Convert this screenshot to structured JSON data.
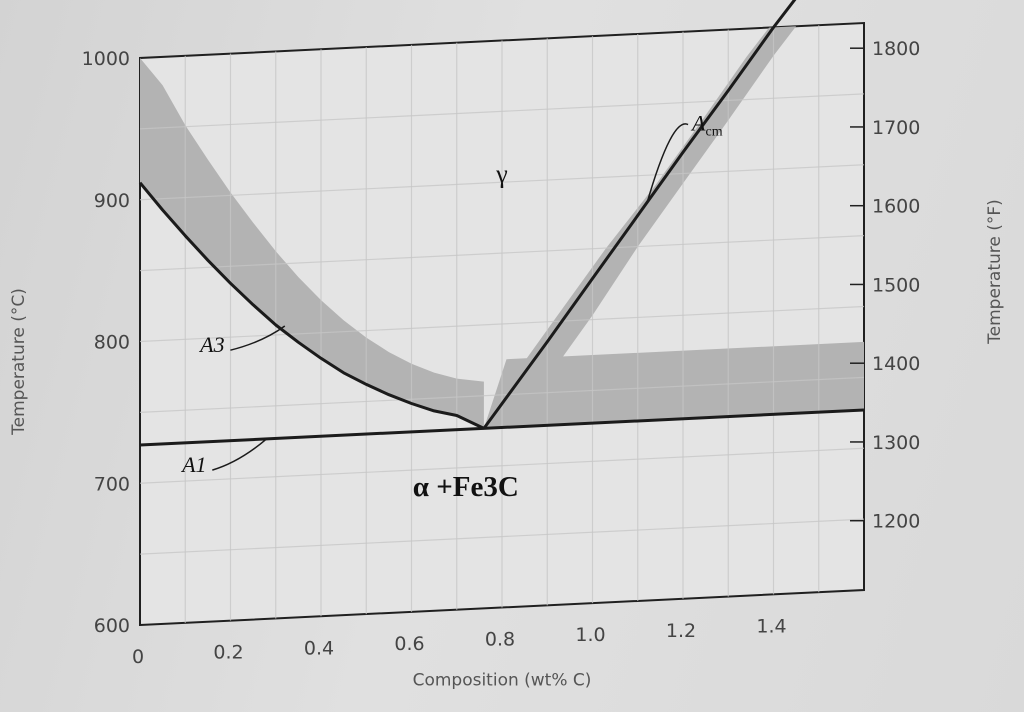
{
  "chart_data": {
    "type": "line",
    "title": "",
    "xlabel": "Composition (wt% C)",
    "ylabel": "Temperature (°C)",
    "y2label": "Temperature (°F)",
    "xlim": [
      0,
      1.6
    ],
    "ylim": [
      600,
      1000
    ],
    "x_ticks": [
      0,
      0.2,
      0.4,
      0.6,
      0.8,
      1.0,
      1.2,
      1.4
    ],
    "x_tick_labels": [
      "0",
      "0.2",
      "0.4",
      "0.6",
      "0.8",
      "1.0",
      "1.2",
      "1.4"
    ],
    "y_ticks": [
      600,
      700,
      800,
      900,
      1000
    ],
    "y_tick_labels": [
      "600",
      "700",
      "800",
      "900",
      "1000"
    ],
    "y2_ticks": [
      1200,
      1300,
      1400,
      1500,
      1600,
      1700,
      1800
    ],
    "y2_tick_labels": [
      "1200",
      "1300",
      "1400",
      "1500",
      "1600",
      "1700",
      "1800"
    ],
    "grid": true,
    "legend": "none",
    "series": [
      {
        "name": "A3",
        "x": [
          0,
          0.05,
          0.1,
          0.15,
          0.2,
          0.25,
          0.3,
          0.35,
          0.4,
          0.45,
          0.5,
          0.55,
          0.6,
          0.65,
          0.7,
          0.76
        ],
        "y": [
          912,
          892,
          873,
          855,
          838,
          822,
          807,
          794,
          782,
          771,
          762,
          754,
          747,
          741,
          737,
          727
        ]
      },
      {
        "name": "Acm",
        "x": [
          0.76,
          0.9,
          1.0,
          1.1,
          1.2,
          1.3,
          1.4,
          1.45
        ],
        "y": [
          727,
          786,
          829,
          872,
          915,
          957,
          1000,
          1020
        ]
      },
      {
        "name": "A1",
        "x": [
          0,
          1.6
        ],
        "y": [
          727,
          727
        ]
      }
    ],
    "shaded_bands": [
      {
        "region": "above A3",
        "x": [
          0,
          0.05,
          0.1,
          0.15,
          0.2,
          0.25,
          0.3,
          0.35,
          0.4,
          0.45,
          0.5,
          0.55,
          0.6,
          0.65,
          0.7,
          0.76
        ],
        "lower": [
          912,
          892,
          873,
          855,
          838,
          822,
          807,
          794,
          782,
          771,
          762,
          754,
          747,
          741,
          737,
          727
        ],
        "upper": [
          1000,
          980,
          951,
          926,
          902,
          880,
          859,
          840,
          823,
          808,
          795,
          784,
          775,
          768,
          763,
          760
        ]
      },
      {
        "region": "left of Acm",
        "x_lower": [
          0.76,
          0.9,
          1.0,
          1.1,
          1.2,
          1.3,
          1.4,
          1.45
        ],
        "x_upper": [
          0.76,
          0.82,
          0.92,
          1.03,
          1.14,
          1.24,
          1.34,
          1.39
        ],
        "y": [
          727,
          760,
          803,
          850,
          893,
          936,
          980,
          1000
        ]
      },
      {
        "region": "above A1 right side",
        "x": [
          0.76,
          1.6
        ],
        "lower": [
          727,
          727
        ],
        "upper": [
          775,
          775
        ]
      }
    ],
    "annotations": [
      {
        "text": "γ",
        "x": 0.8,
        "y": 900
      },
      {
        "text": "α +Fe3C",
        "x": 0.72,
        "y": 680
      },
      {
        "text": "A3",
        "x": 0.16,
        "y": 790
      },
      {
        "text": "A1",
        "x": 0.12,
        "y": 706
      },
      {
        "text": "A",
        "sub": "cm",
        "x": 1.22,
        "y": 930
      }
    ]
  },
  "colors": {
    "line": "#1b1b1b",
    "band": "#b3b3b3",
    "grid": "#c6c6c6",
    "frame": "#202020"
  }
}
